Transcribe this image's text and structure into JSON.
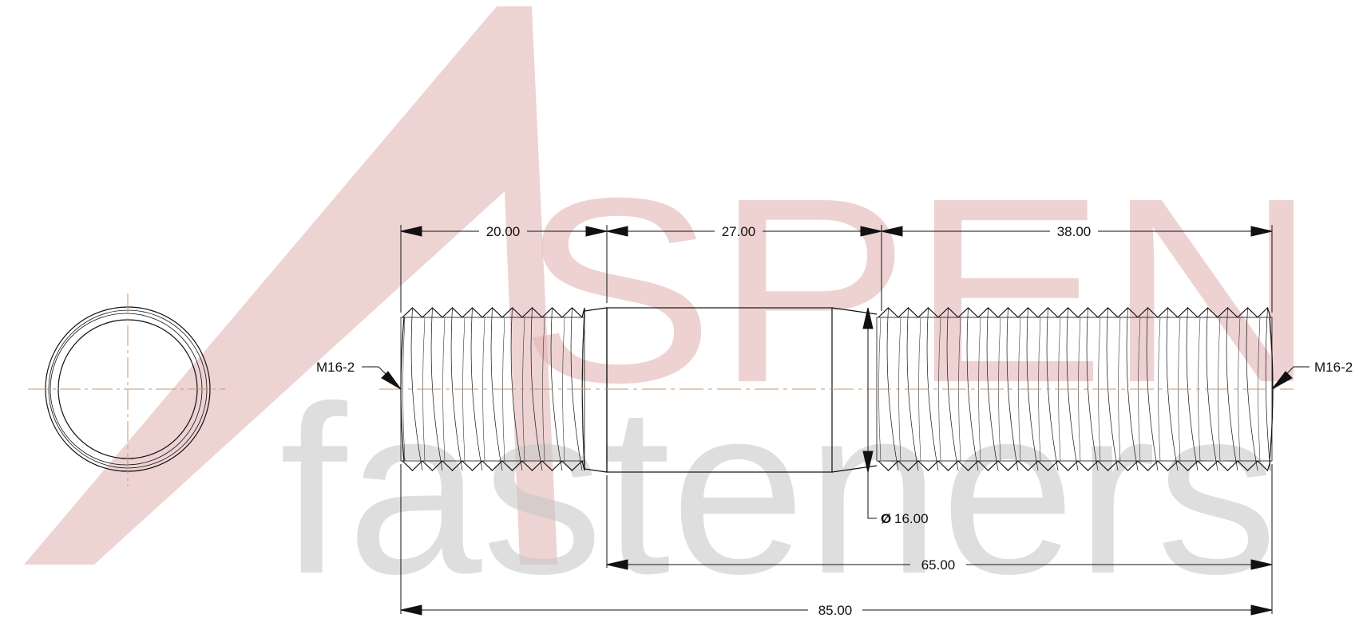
{
  "watermark": {
    "brand_top": "SPEN",
    "brand_bottom": "fasteners",
    "color_top": "#e3b5b5",
    "color_bottom": "#c9c9c9"
  },
  "dimensions": {
    "left_thread_length": "20.00",
    "center_length": "27.00",
    "right_thread_length": "38.00",
    "diameter": "16.00",
    "diameter_symbol": "Ø",
    "shank_plus_thread": "65.00",
    "overall_length": "85.00"
  },
  "callouts": {
    "left_thread": "M16-2",
    "right_thread": "M16-2"
  },
  "colors": {
    "line": "#111111",
    "centerline": "#c8956a"
  }
}
